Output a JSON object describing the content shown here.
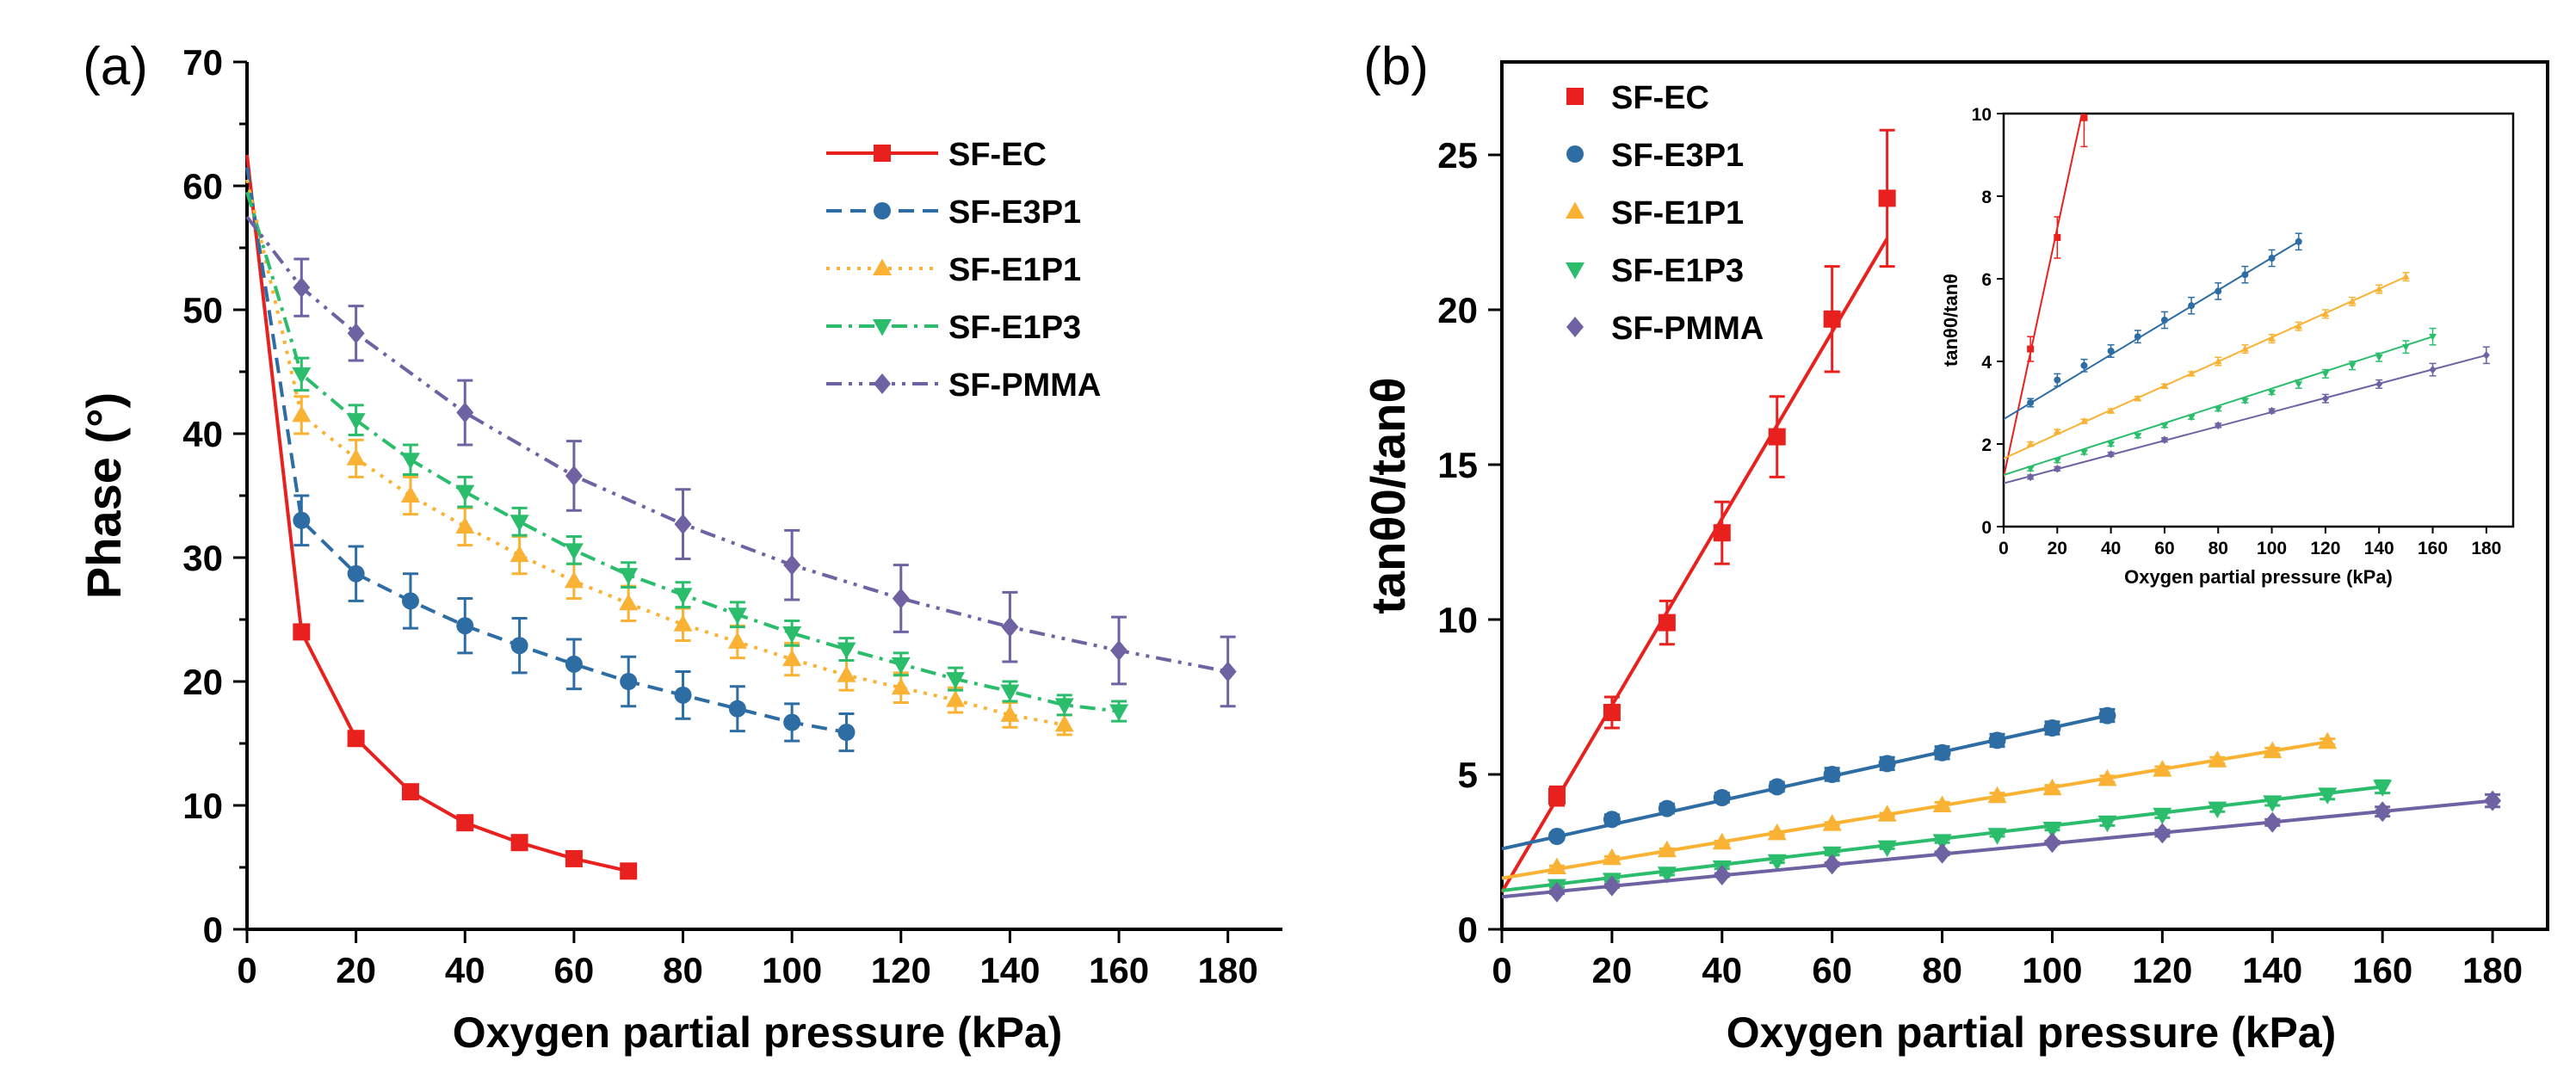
{
  "chart_data": [
    {
      "panel_label": "(a)",
      "type": "line",
      "xlabel": "Oxygen partial pressure (kPa)",
      "ylabel": "Phase (°)",
      "xlim": [
        0,
        190
      ],
      "ylim": [
        0,
        70
      ],
      "xticks": [
        0,
        20,
        40,
        60,
        80,
        100,
        120,
        140,
        160,
        180
      ],
      "yticks": [
        0,
        10,
        20,
        30,
        40,
        50,
        60,
        70
      ],
      "legend_position": "top-right",
      "series": [
        {
          "name": "SF-EC",
          "color": "#e8211e",
          "marker": "square",
          "dash": "solid",
          "x": [
            0,
            10,
            20,
            30,
            40,
            50,
            60,
            70
          ],
          "y": [
            62.5,
            24,
            15.4,
            11.1,
            8.6,
            7.0,
            5.7,
            4.7
          ],
          "err": [
            1.5,
            0.4,
            0.5,
            0.4,
            0.4,
            0.4,
            0.4,
            0.5
          ]
        },
        {
          "name": "SF-E3P1",
          "color": "#2e6da4",
          "marker": "circle",
          "dash": "dash",
          "x": [
            0,
            10,
            20,
            30,
            40,
            50,
            60,
            70,
            80,
            90,
            100,
            110
          ],
          "y": [
            61.5,
            33,
            28.7,
            26.5,
            24.5,
            22.9,
            21.4,
            20.0,
            18.9,
            17.8,
            16.7,
            15.9
          ],
          "err": [
            3,
            2.0,
            2.2,
            2.2,
            2.2,
            2.2,
            2.0,
            2.0,
            1.9,
            1.8,
            1.5,
            1.5
          ]
        },
        {
          "name": "SF-E1P1",
          "color": "#f9b233",
          "marker": "triangle-up",
          "dash": "dot",
          "x": [
            0,
            10,
            20,
            30,
            40,
            50,
            60,
            70,
            80,
            90,
            100,
            110,
            120,
            130,
            140,
            150
          ],
          "y": [
            60.5,
            41.5,
            38,
            35,
            32.5,
            30.2,
            28.1,
            26.3,
            24.6,
            23.2,
            21.8,
            20.5,
            19.5,
            18.5,
            17.3,
            16.5
          ],
          "err": [
            3,
            1.5,
            1.5,
            1.5,
            1.5,
            1.5,
            1.4,
            1.4,
            1.3,
            1.3,
            1.3,
            1.2,
            1.2,
            1.0,
            1.0,
            0.8
          ]
        },
        {
          "name": "SF-E1P3",
          "color": "#2bbd6c",
          "marker": "triangle-down",
          "dash": "dashdot",
          "x": [
            0,
            10,
            20,
            30,
            40,
            50,
            60,
            70,
            80,
            90,
            100,
            110,
            120,
            130,
            140,
            150,
            160
          ],
          "y": [
            59.5,
            44.8,
            41.1,
            37.9,
            35.3,
            32.9,
            30.6,
            28.6,
            27.0,
            25.4,
            23.9,
            22.6,
            21.4,
            20.2,
            19.2,
            18.1,
            17.6
          ],
          "err": [
            3,
            1.3,
            1.2,
            1.2,
            1.2,
            1.1,
            1.1,
            1.0,
            1.0,
            1.0,
            1.0,
            0.9,
            0.9,
            0.9,
            0.8,
            0.8,
            0.8
          ]
        },
        {
          "name": "SF-PMMA",
          "color": "#6f62a3",
          "marker": "diamond",
          "dash": "dashdotdot",
          "x": [
            0,
            10,
            20,
            30,
            40,
            50,
            60,
            70,
            80,
            90,
            100,
            110,
            120,
            130,
            140,
            150,
            160,
            170,
            180
          ],
          "y": [
            57.5,
            null,
            null,
            null,
            null,
            null,
            null,
            null,
            null,
            null,
            null,
            null,
            null,
            null,
            null,
            null,
            null,
            null,
            null
          ],
          "points_x": [
            10,
            20,
            40,
            60,
            80,
            100,
            120,
            140,
            160,
            180
          ],
          "points_y": [
            51.8,
            48.1,
            41.7,
            36.6,
            32.7,
            29.4,
            26.7,
            24.4,
            22.5,
            20.8
          ],
          "points_err": [
            2.3,
            2.2,
            2.6,
            2.8,
            2.8,
            2.8,
            2.7,
            2.8,
            2.7,
            2.8
          ]
        }
      ]
    },
    {
      "panel_label": "(b)",
      "type": "scatter",
      "xlabel": "Oxygen partial pressure (kPa)",
      "ylabel": "tanθ0/tanθ",
      "xlim": [
        0,
        190
      ],
      "ylim": [
        0,
        28
      ],
      "xticks": [
        0,
        20,
        40,
        60,
        80,
        100,
        120,
        140,
        160,
        180
      ],
      "yticks": [
        0,
        5,
        10,
        15,
        20,
        25
      ],
      "legend_position": "top-left",
      "series": [
        {
          "name": "SF-EC",
          "color": "#e8211e",
          "marker": "square",
          "x": [
            10,
            20,
            30,
            40,
            50,
            60,
            70
          ],
          "y": [
            4.3,
            7.0,
            9.9,
            12.8,
            15.9,
            19.7,
            23.6
          ],
          "err": [
            0.3,
            0.5,
            0.7,
            1.0,
            1.3,
            1.7,
            2.2
          ],
          "fit": [
            [
              0,
              1.2
            ],
            [
              70,
              22.3
            ]
          ]
        },
        {
          "name": "SF-E3P1",
          "color": "#2e6da4",
          "marker": "circle",
          "x": [
            10,
            20,
            30,
            40,
            50,
            60,
            70,
            80,
            90,
            100,
            110
          ],
          "y": [
            3.0,
            3.55,
            3.9,
            4.25,
            4.6,
            5.0,
            5.35,
            5.7,
            6.1,
            6.5,
            6.9
          ],
          "err": [
            0.1,
            0.15,
            0.15,
            0.15,
            0.15,
            0.2,
            0.2,
            0.2,
            0.2,
            0.2,
            0.2
          ],
          "fit": [
            [
              0,
              2.6
            ],
            [
              110,
              6.9
            ]
          ]
        },
        {
          "name": "SF-E1P1",
          "color": "#f9b233",
          "marker": "triangle-up",
          "x": [
            10,
            20,
            30,
            40,
            50,
            60,
            70,
            80,
            90,
            100,
            110,
            120,
            130,
            140,
            150
          ],
          "y": [
            2.0,
            2.3,
            2.55,
            2.8,
            3.1,
            3.4,
            3.7,
            4.0,
            4.3,
            4.55,
            4.85,
            5.15,
            5.45,
            5.75,
            6.05
          ],
          "err": [
            0.05,
            0.05,
            0.05,
            0.05,
            0.05,
            0.05,
            0.05,
            0.1,
            0.1,
            0.1,
            0.1,
            0.1,
            0.1,
            0.1,
            0.1
          ],
          "fit": [
            [
              0,
              1.65
            ],
            [
              150,
              6.05
            ]
          ]
        },
        {
          "name": "SF-E1P3",
          "color": "#2bbd6c",
          "marker": "triangle-down",
          "x": [
            10,
            20,
            30,
            40,
            50,
            60,
            70,
            80,
            90,
            100,
            110,
            120,
            130,
            140,
            150,
            160
          ],
          "y": [
            1.4,
            1.6,
            1.8,
            2.0,
            2.2,
            2.45,
            2.65,
            2.85,
            3.05,
            3.25,
            3.45,
            3.7,
            3.9,
            4.1,
            4.35,
            4.6
          ],
          "err": [
            0.05,
            0.05,
            0.05,
            0.05,
            0.05,
            0.05,
            0.05,
            0.05,
            0.05,
            0.05,
            0.1,
            0.1,
            0.1,
            0.1,
            0.15,
            0.2
          ],
          "fit": [
            [
              0,
              1.25
            ],
            [
              160,
              4.6
            ]
          ]
        },
        {
          "name": "SF-PMMA",
          "color": "#6f62a3",
          "marker": "diamond",
          "x": [
            10,
            20,
            40,
            60,
            80,
            100,
            120,
            140,
            160,
            180
          ],
          "y": [
            1.2,
            1.4,
            1.75,
            2.1,
            2.45,
            2.8,
            3.1,
            3.45,
            3.8,
            4.15
          ],
          "err": [
            0.05,
            0.05,
            0.05,
            0.05,
            0.05,
            0.05,
            0.1,
            0.1,
            0.15,
            0.2
          ],
          "fit": [
            [
              0,
              1.05
            ],
            [
              180,
              4.15
            ]
          ]
        }
      ],
      "inset": {
        "xlabel": "Oxygen partial pressure (kPa)",
        "ylabel": "tanθ0/tanθ",
        "xlim": [
          0,
          190
        ],
        "ylim": [
          0,
          10
        ],
        "xticks": [
          0,
          20,
          40,
          60,
          80,
          100,
          120,
          140,
          160,
          180
        ],
        "yticks": [
          0,
          2,
          4,
          6,
          8,
          10
        ]
      }
    }
  ]
}
